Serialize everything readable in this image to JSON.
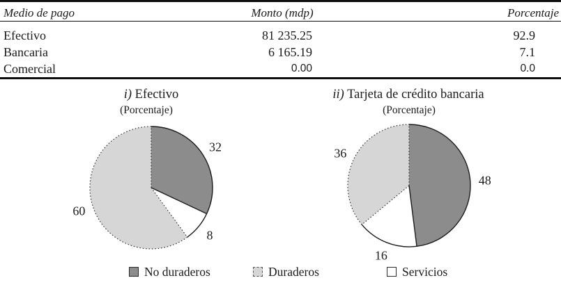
{
  "table": {
    "columns": [
      "Medio de pago",
      "Monto (mdp)",
      "Porcentaje"
    ],
    "rows": [
      [
        "Efectivo",
        "81 235.25",
        "92.9"
      ],
      [
        "Bancaria",
        "6 165.19",
        "7.1"
      ],
      [
        "Comercial",
        "0.00",
        "0.0"
      ]
    ]
  },
  "chart_data": [
    {
      "type": "pie",
      "id": "pie-efectivo",
      "title_prefix": "i)",
      "title": "Efectivo",
      "subtitle": "(Porcentaje)",
      "start_angle_deg": 0,
      "direction": "clockwise",
      "slices": [
        {
          "label": "No duraderos",
          "value": 32,
          "color": "#8c8c8c",
          "border": "solid"
        },
        {
          "label": "Servicios",
          "value": 8,
          "color": "#ffffff",
          "border": "solid"
        },
        {
          "label": "Duraderos",
          "value": 60,
          "color": "#d6d6d6",
          "border": "dotted"
        }
      ]
    },
    {
      "type": "pie",
      "id": "pie-bancaria",
      "title_prefix": "ii)",
      "title": "Tarjeta de crédito bancaria",
      "subtitle": "(Porcentaje)",
      "start_angle_deg": 0,
      "direction": "clockwise",
      "slices": [
        {
          "label": "No duraderos",
          "value": 48,
          "color": "#8c8c8c",
          "border": "solid"
        },
        {
          "label": "Servicios",
          "value": 16,
          "color": "#ffffff",
          "border": "solid"
        },
        {
          "label": "Duraderos",
          "value": 36,
          "color": "#d6d6d6",
          "border": "dotted"
        }
      ]
    }
  ],
  "legend": {
    "items": [
      {
        "label": "No duraderos",
        "color": "#8c8c8c",
        "border": "solid"
      },
      {
        "label": "Duraderos",
        "color": "#d6d6d6",
        "border": "dotted"
      },
      {
        "label": "Servicios",
        "color": "#ffffff",
        "border": "solid"
      }
    ]
  }
}
